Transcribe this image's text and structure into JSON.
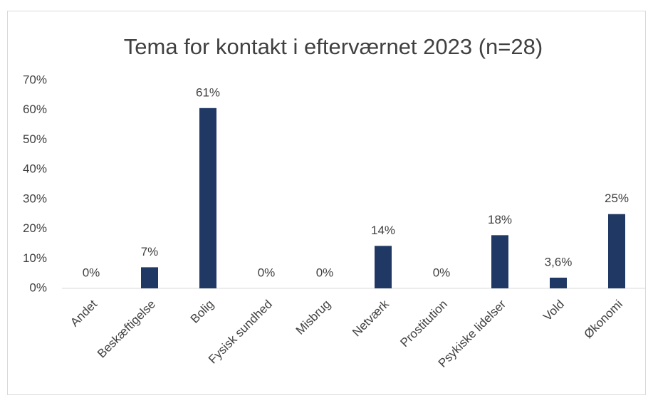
{
  "chart_data": {
    "type": "bar",
    "title": "Tema for kontakt i efterværnet 2023 (n=28)",
    "categories": [
      "Andet",
      "Beskæftigelse",
      "Bolig",
      "Fysisk sundhed",
      "Misbrug",
      "Netværk",
      "Prostitution",
      "Psykiske lidelser",
      "Vold",
      "Økonomi"
    ],
    "values": [
      0,
      7.1,
      60.7,
      0,
      0,
      14.3,
      0,
      17.9,
      3.6,
      25
    ],
    "value_labels": [
      "0%",
      "7%",
      "61%",
      "0%",
      "0%",
      "14%",
      "0%",
      "18%",
      "3,6%",
      "25%"
    ],
    "color": "#1f3864",
    "ylim": [
      0,
      70
    ],
    "yticks": [
      {
        "value": 0,
        "label": "0%"
      },
      {
        "value": 10,
        "label": "10%"
      },
      {
        "value": 20,
        "label": "20%"
      },
      {
        "value": 30,
        "label": "30%"
      },
      {
        "value": 40,
        "label": "40%"
      },
      {
        "value": 50,
        "label": "50%"
      },
      {
        "value": 60,
        "label": "60%"
      },
      {
        "value": 70,
        "label": "70%"
      }
    ],
    "grid": false
  }
}
